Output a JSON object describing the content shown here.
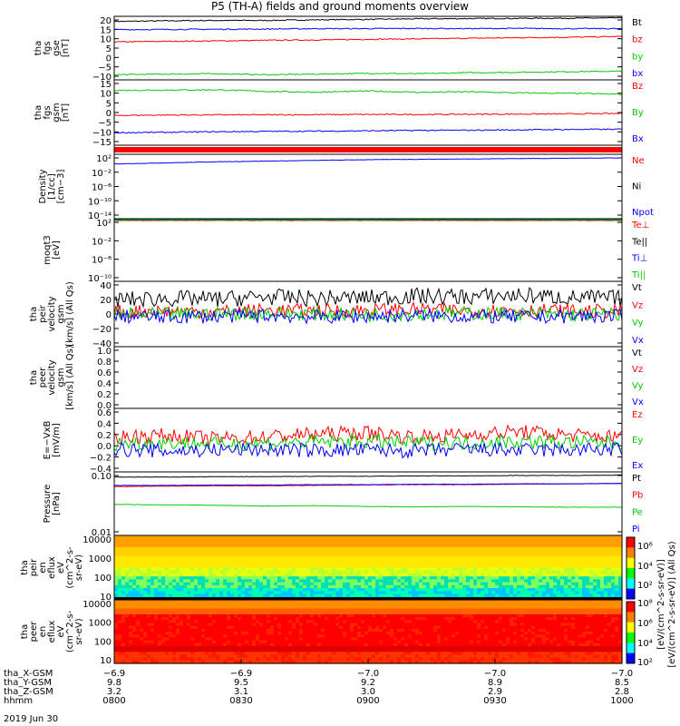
{
  "title": "P5 (TH-A) fields and ground moments overview",
  "colors": {
    "black": "#000000",
    "red": "#ff0000",
    "green": "#00cc00",
    "blue": "#0000ff"
  },
  "chart_data": [
    {
      "type": "line",
      "panel": "fgs_gse",
      "ylabel": [
        "tha",
        "fgs",
        "gse",
        "[nT]"
      ],
      "yticks": [
        "20",
        "15",
        "10",
        "5",
        "0",
        "−5",
        "−10"
      ],
      "ylim": [
        -10,
        21
      ],
      "series": [
        {
          "name": "Bt",
          "color": "#000000",
          "values": [
            18.5,
            18.8,
            19.0,
            19.0,
            19.3,
            19.5,
            19.8,
            19.9,
            20.0,
            20.1,
            20.2
          ]
        },
        {
          "name": "bz",
          "color": "#ff0000",
          "values": [
            8.5,
            8.8,
            9.0,
            9.3,
            9.5,
            9.8,
            10.0,
            10.3,
            10.6,
            10.8,
            11.2
          ]
        },
        {
          "name": "by",
          "color": "#00cc00",
          "values": [
            -7.5,
            -7.2,
            -7.0,
            -7.5,
            -7.2,
            -6.8,
            -7.0,
            -6.5,
            -6.3,
            -6.0,
            -5.8
          ]
        },
        {
          "name": "bx",
          "color": "#0000ff",
          "values": [
            14.5,
            14.6,
            14.7,
            14.8,
            15.0,
            15.0,
            15.1,
            15.0,
            15.1,
            15.0,
            15.0
          ]
        }
      ]
    },
    {
      "type": "line",
      "panel": "fgs_gsm",
      "ylabel": [
        "tha",
        "fgs",
        "gsm",
        "[nT]"
      ],
      "yticks": [
        "15",
        "10",
        "5",
        "0",
        "−5",
        "−10",
        "−15"
      ],
      "ylim": [
        -17,
        17
      ],
      "series": [
        {
          "name": "Bz",
          "color": "#ff0000",
          "values": [
            -1.5,
            -1.3,
            -1.2,
            -1.2,
            -1.1,
            -1.0,
            -1.0,
            -0.9,
            -0.8,
            -0.7,
            -0.5
          ]
        },
        {
          "name": "By",
          "color": "#00cc00",
          "values": [
            11.5,
            11.7,
            11.8,
            11.0,
            10.6,
            11.2,
            10.5,
            10.8,
            10.2,
            10.0,
            9.5
          ]
        },
        {
          "name": "Bx",
          "color": "#0000ff",
          "values": [
            -10.5,
            -10.3,
            -10.0,
            -9.8,
            -9.7,
            -9.5,
            -9.3,
            -9.2,
            -9.0,
            -8.8,
            -8.7
          ]
        }
      ]
    },
    {
      "type": "line",
      "panel": "density",
      "ylabel": [
        "Density",
        "[1/cc]",
        "[cm−3]"
      ],
      "yticks": [
        "10²",
        "10⁻²",
        "10⁻⁶",
        "10⁻¹⁰",
        "10⁻¹⁴"
      ],
      "ylim": [
        -15,
        3
      ],
      "log": true,
      "series": [
        {
          "name": "Ne",
          "color": "#ff0000",
          "values": []
        },
        {
          "name": "Ni",
          "color": "#000000",
          "values": []
        },
        {
          "name": "Npot",
          "color": "#0000ff",
          "values": [
            0.3,
            0.6,
            0.9,
            1.1,
            1.3,
            1.5,
            1.6,
            1.7,
            1.8,
            1.9,
            2.0
          ]
        }
      ]
    },
    {
      "type": "line",
      "panel": "temperature",
      "ylabel": [
        "moqt3",
        "[eV]"
      ],
      "yticks": [
        "10²",
        "10⁻²",
        "10⁻⁶",
        "10⁻¹⁰"
      ],
      "ylim": [
        -11,
        3
      ],
      "log": true,
      "series": [
        {
          "name": "Te⊥",
          "color": "#ff0000",
          "values": [
            2.6,
            2.6,
            2.6,
            2.6,
            2.6,
            2.6,
            2.6,
            2.6,
            2.6,
            2.6,
            2.6
          ]
        },
        {
          "name": "Te||",
          "color": "#000000",
          "values": [
            2.7,
            2.7,
            2.7,
            2.7,
            2.7,
            2.7,
            2.7,
            2.7,
            2.7,
            2.7,
            2.7
          ]
        },
        {
          "name": "Ti⊥",
          "color": "#0000ff",
          "values": [
            2.8,
            2.8,
            2.8,
            2.8,
            2.8,
            2.8,
            2.8,
            2.8,
            2.8,
            2.8,
            2.8
          ]
        },
        {
          "name": "Ti||",
          "color": "#00cc00",
          "values": [
            2.75,
            2.75,
            2.75,
            2.75,
            2.75,
            2.75,
            2.75,
            2.75,
            2.75,
            2.75,
            2.75
          ]
        }
      ]
    },
    {
      "type": "line",
      "panel": "peir_velocity",
      "ylabel": [
        "tha",
        "peir",
        "velocity",
        "gsm",
        "[km/s] (All Qs)"
      ],
      "yticks": [
        "40",
        "20",
        "0",
        "−20",
        "−40"
      ],
      "ylim": [
        -42,
        42
      ],
      "series": [
        {
          "name": "Vt",
          "color": "#000000",
          "values": [
            18,
            20,
            19,
            22,
            20,
            21,
            23,
            22,
            24,
            21,
            20
          ]
        },
        {
          "name": "Vz",
          "color": "#ff0000",
          "values": [
            3,
            4,
            3,
            5,
            4,
            5,
            6,
            4,
            5,
            4,
            3
          ]
        },
        {
          "name": "Vy",
          "color": "#00cc00",
          "values": [
            0,
            -1,
            0,
            1,
            0,
            -1,
            0,
            1,
            0,
            -1,
            0
          ]
        },
        {
          "name": "Vx",
          "color": "#0000ff",
          "values": [
            -3,
            -4,
            -3,
            -2,
            -4,
            -3,
            -2,
            -3,
            -4,
            -3,
            -3
          ]
        }
      ]
    },
    {
      "type": "line",
      "panel": "peer_velocity",
      "ylabel": [
        "tha",
        "peer",
        "velocity",
        "gsm",
        "[km/s] (All Qs)"
      ],
      "yticks": [
        "1.0",
        "0.8",
        "0.6",
        "0.4",
        "0.2",
        "0.0"
      ],
      "ylim": [
        0,
        1
      ],
      "series": [
        {
          "name": "Vt",
          "color": "#000000",
          "values": []
        },
        {
          "name": "Vz",
          "color": "#ff0000",
          "values": []
        },
        {
          "name": "Vy",
          "color": "#00cc00",
          "values": []
        },
        {
          "name": "Vx",
          "color": "#0000ff",
          "values": []
        }
      ]
    },
    {
      "type": "line",
      "panel": "efield",
      "ylabel": [
        "E=−VxB",
        "[mV/m]"
      ],
      "yticks": [
        "0.6",
        "0.4",
        "0.2",
        "0.0",
        "−0.2",
        "−0.4"
      ],
      "ylim": [
        -0.42,
        0.62
      ],
      "series": [
        {
          "name": "Ez",
          "color": "#ff0000",
          "values": [
            0.15,
            0.18,
            0.12,
            0.16,
            0.2,
            0.22,
            0.15,
            0.19,
            0.24,
            0.18,
            0.15
          ]
        },
        {
          "name": "Ey",
          "color": "#00cc00",
          "values": [
            0.05,
            0.06,
            0.04,
            0.05,
            0.07,
            0.08,
            0.05,
            0.06,
            0.08,
            0.06,
            0.05
          ]
        },
        {
          "name": "Ex",
          "color": "#0000ff",
          "values": [
            -0.05,
            -0.08,
            -0.06,
            -0.05,
            -0.07,
            -0.06,
            -0.08,
            -0.05,
            -0.07,
            -0.06,
            -0.05
          ]
        }
      ]
    },
    {
      "type": "line",
      "panel": "pressure",
      "ylabel": [
        "Pressure",
        "[nPa]"
      ],
      "yticks": [
        "0.10",
        "0.01"
      ],
      "ylim": [
        -2.1,
        -0.5
      ],
      "log": true,
      "unit_note": "(All Qs)",
      "series": [
        {
          "name": "Pt",
          "color": "#000000",
          "values": [
            -0.63,
            -0.63,
            -0.62,
            -0.62,
            -0.61,
            -0.61,
            -0.6,
            -0.6,
            -0.59,
            -0.59,
            -0.58
          ]
        },
        {
          "name": "Pb",
          "color": "#ff0000",
          "values": [
            -0.87,
            -0.86,
            -0.85,
            -0.85,
            -0.84,
            -0.83,
            -0.82,
            -0.82,
            -0.81,
            -0.8,
            -0.79
          ]
        },
        {
          "name": "Pe",
          "color": "#00cc00",
          "values": [
            -1.32,
            -1.33,
            -1.34,
            -1.36,
            -1.35,
            -1.37,
            -1.38,
            -1.37,
            -1.38,
            -1.39,
            -1.39
          ]
        },
        {
          "name": "Pi",
          "color": "#0000ff",
          "values": [
            -0.84,
            -0.84,
            -0.83,
            -0.83,
            -0.82,
            -0.82,
            -0.81,
            -0.81,
            -0.8,
            -0.8,
            -0.79
          ]
        }
      ]
    },
    {
      "type": "heatmap",
      "panel": "peir_spectrogram",
      "ylabel": [
        "tha",
        "peir",
        "en",
        "eflux",
        "eV",
        "(cm^2-s-",
        "sr-eV)"
      ],
      "yticks": [
        "10000",
        "1000",
        "100",
        "10"
      ]
    },
    {
      "type": "heatmap",
      "panel": "peer_spectrogram",
      "ylabel": [
        "tha",
        "peer",
        "en",
        "eflux",
        "eV",
        "(cm^2-s-",
        "sr-eV)"
      ],
      "yticks": [
        "10000",
        "1000",
        "100",
        "10"
      ]
    }
  ],
  "colorbar": {
    "ticks": [
      "10⁶",
      "10⁴",
      "10²",
      "10⁸",
      "10⁶",
      "10⁴",
      "10²"
    ],
    "label": "[eV/(cm^2-s-sr-eV)]",
    "label2": "[eV/(cm^2-s-sr-eV)]  (All Qs)"
  },
  "xaxis": {
    "rows": [
      {
        "label": "tha_X-GSM",
        "values": [
          "−6.9",
          "−6.9",
          "−7.0",
          "−7.0",
          "−7.0"
        ]
      },
      {
        "label": "tha_Y-GSM",
        "values": [
          "9.8",
          "9.5",
          "9.2",
          "8.9",
          "8.5"
        ]
      },
      {
        "label": "tha_Z-GSM",
        "values": [
          "3.2",
          "3.1",
          "3.0",
          "2.9",
          "2.8"
        ]
      },
      {
        "label": "hhmm",
        "values": [
          "0800",
          "0830",
          "0900",
          "0930",
          "1000"
        ]
      }
    ],
    "date": "2019 Jun 30"
  }
}
